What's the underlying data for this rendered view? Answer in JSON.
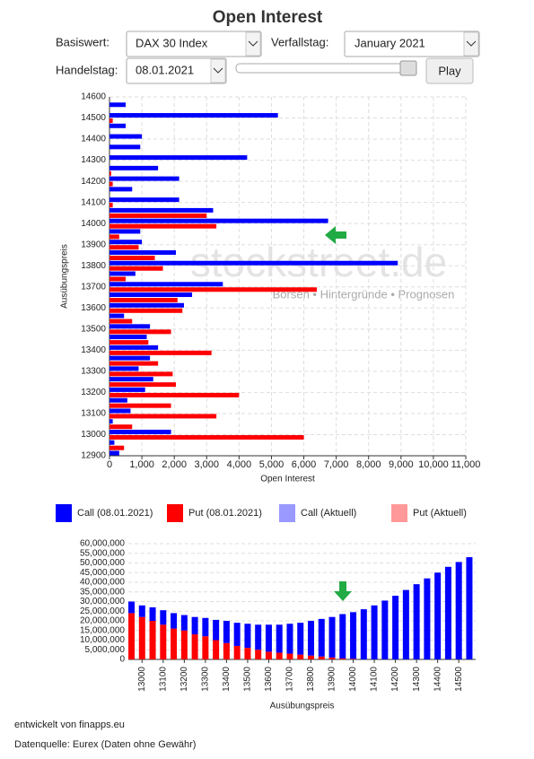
{
  "page": {
    "controls": {
      "underlying_label": "Basiswert:",
      "underlying_value": "DAX 30 Index",
      "expiry_label": "Verfallstag:",
      "expiry_value": "January 2021",
      "tradeday_label": "Handelstag:",
      "tradeday_value": "08.01.2021",
      "play": "Play"
    },
    "watermark": {
      "brand": "stockstreet.de",
      "tagline": "Börsen • Hintergründe • Prognosen"
    },
    "footer": [
      "entwickelt von finapps.eu",
      "Datenquelle: Eurex (Daten ohne Gewähr)"
    ]
  },
  "chart_data": [
    {
      "type": "bar",
      "orientation": "horizontal",
      "title": "Open Interest",
      "x_label": "Open Interest",
      "y_label": "Ausübungspreis",
      "grid": true,
      "y": [
        12900,
        12950,
        13000,
        13050,
        13100,
        13150,
        13200,
        13250,
        13300,
        13350,
        13400,
        13450,
        13500,
        13550,
        13600,
        13650,
        13700,
        13750,
        13800,
        13850,
        13900,
        13950,
        14000,
        14050,
        14100,
        14150,
        14200,
        14250,
        14300,
        14350,
        14400,
        14450,
        14500,
        14550
      ],
      "ylim": [
        12900,
        14600
      ],
      "yticks": [
        12900,
        13000,
        13100,
        13200,
        13300,
        13400,
        13500,
        13600,
        13700,
        13800,
        13900,
        14000,
        14100,
        14200,
        14300,
        14400,
        14500,
        14600
      ],
      "xlim": [
        0,
        11000
      ],
      "xticks": [
        0,
        {
          "value": 1000,
          "label": "1,000"
        },
        {
          "value": 2000,
          "label": "2,000"
        },
        {
          "value": 3000,
          "label": "3,000"
        },
        {
          "value": 4000,
          "label": "4,000"
        },
        {
          "value": 5000,
          "label": "5,000"
        },
        {
          "value": 6000,
          "label": "6,000"
        },
        {
          "value": 7000,
          "label": "7,000"
        },
        {
          "value": 8000,
          "label": "8,000"
        },
        {
          "value": 9000,
          "label": "9,000"
        },
        {
          "value": 10000,
          "label": "10,000"
        },
        {
          "value": 11000,
          "label": "11,000"
        }
      ],
      "series": [
        {
          "name": "Call (08.01.2021)",
          "color": "#0000ff",
          "values": [
            300,
            150,
            1900,
            100,
            650,
            550,
            1100,
            1350,
            900,
            1250,
            1500,
            1150,
            1250,
            450,
            2300,
            2550,
            3500,
            800,
            8900,
            2050,
            1000,
            950,
            6750,
            3200,
            2150,
            700,
            2150,
            1500,
            4250,
            950,
            1000,
            500,
            5200,
            500
          ]
        },
        {
          "name": "Put (08.01.2021)",
          "color": "#ff0000",
          "values": [
            0,
            450,
            6000,
            700,
            3300,
            1900,
            4000,
            2050,
            1950,
            1500,
            3150,
            1200,
            1900,
            700,
            2250,
            2100,
            6400,
            500,
            1650,
            1400,
            900,
            300,
            3300,
            3000,
            100,
            0,
            100,
            50,
            0,
            0,
            0,
            0,
            100,
            0
          ]
        },
        {
          "name": "Call (Aktuell)",
          "color": "#9999ff",
          "values": [
            null,
            null,
            null,
            null,
            null,
            null,
            null,
            null,
            null,
            null,
            null,
            null,
            null,
            null,
            null,
            null,
            null,
            null,
            null,
            null,
            null,
            null,
            null,
            null,
            null,
            null,
            null,
            null,
            null,
            null,
            null,
            null,
            null,
            null
          ]
        },
        {
          "name": "Put (Aktuell)",
          "color": "#ff9999",
          "values": [
            null,
            null,
            null,
            null,
            null,
            null,
            null,
            null,
            null,
            null,
            null,
            null,
            null,
            null,
            null,
            null,
            null,
            null,
            null,
            null,
            null,
            null,
            null,
            null,
            null,
            null,
            null,
            null,
            null,
            null,
            null,
            null,
            null,
            null
          ]
        }
      ]
    },
    {
      "type": "bar",
      "stacked": true,
      "x_label": "Ausübungspreis",
      "grid": true,
      "x": [
        12950,
        13000,
        13050,
        13100,
        13150,
        13200,
        13250,
        13300,
        13350,
        13400,
        13450,
        13500,
        13550,
        13600,
        13650,
        13700,
        13750,
        13800,
        13850,
        13900,
        13950,
        14000,
        14050,
        14100,
        14150,
        14200,
        14250,
        14300,
        14350,
        14400,
        14450,
        14500,
        14550
      ],
      "xlim": [
        12935,
        14580
      ],
      "xticks": [
        13000,
        13100,
        13200,
        13300,
        13400,
        13500,
        13600,
        13700,
        13800,
        13900,
        14000,
        14100,
        14200,
        14300,
        14400,
        14500
      ],
      "ylim": [
        0,
        60000000
      ],
      "yticks": [
        0,
        {
          "value": 5000000,
          "label": "5,000,000"
        },
        {
          "value": 10000000,
          "label": "10,000,000"
        },
        {
          "value": 15000000,
          "label": "15,000,000"
        },
        {
          "value": 20000000,
          "label": "20,000,000"
        },
        {
          "value": 25000000,
          "label": "25,000,000"
        },
        {
          "value": 30000000,
          "label": "30,000,000"
        },
        {
          "value": 35000000,
          "label": "35,000,000"
        },
        {
          "value": 40000000,
          "label": "40,000,000"
        },
        {
          "value": 45000000,
          "label": "45,000,000"
        },
        {
          "value": 50000000,
          "label": "50,000,000"
        },
        {
          "value": 55000000,
          "label": "55,000,000"
        },
        {
          "value": 60000000,
          "label": "60,000,000"
        }
      ],
      "series": [
        {
          "color": "#ff0000",
          "values": [
            24000000,
            22000000,
            20000000,
            18000000,
            16000000,
            15000000,
            13000000,
            12000000,
            10000000,
            8500000,
            7000000,
            6000000,
            5000000,
            4000000,
            3500000,
            3000000,
            2500000,
            2000000,
            1500000,
            1000000,
            500000,
            300000,
            0,
            0,
            0,
            0,
            0,
            0,
            0,
            0,
            0,
            0,
            0
          ]
        },
        {
          "color": "#0000ff",
          "values": [
            6000000,
            6000000,
            7000000,
            7500000,
            8000000,
            8000000,
            9000000,
            9500000,
            10500000,
            11500000,
            12000000,
            12500000,
            13000000,
            14000000,
            14500000,
            15500000,
            16500000,
            18000000,
            19500000,
            21000000,
            23000000,
            24200000,
            26000000,
            28000000,
            30500000,
            33000000,
            36000000,
            39000000,
            42000000,
            45000000,
            48000000,
            50500000,
            53000000
          ]
        }
      ]
    }
  ]
}
